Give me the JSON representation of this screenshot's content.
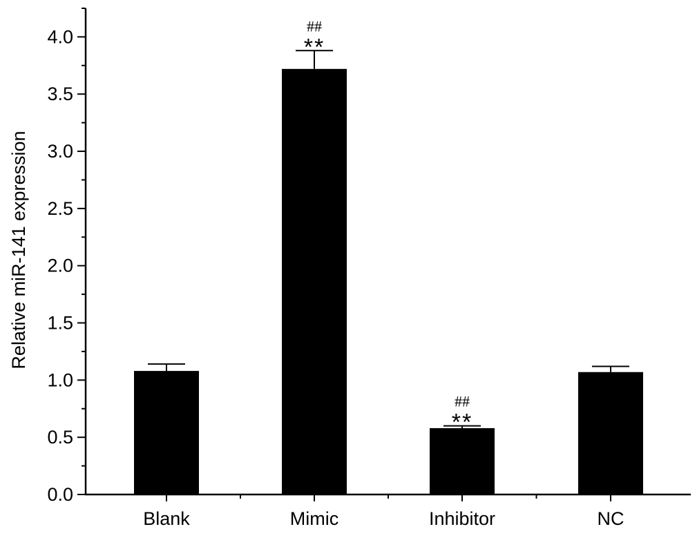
{
  "chart_data": {
    "type": "bar",
    "categories": [
      "Blank",
      "Mimic",
      "Inhibitor",
      "NC"
    ],
    "values": [
      1.08,
      3.72,
      0.58,
      1.07
    ],
    "errors": [
      0.06,
      0.16,
      0.02,
      0.05
    ],
    "annotations": [
      {
        "category": "Mimic",
        "lines": [
          "##",
          "**"
        ]
      },
      {
        "category": "Inhibitor",
        "lines": [
          "##",
          "**"
        ]
      }
    ],
    "ylabel": "Relative miR-141 expression",
    "xlabel": "",
    "ylim": [
      0,
      4.25
    ],
    "yticks": [
      "0.0",
      "0.5",
      "1.0",
      "1.5",
      "2.0",
      "2.5",
      "3.0",
      "3.5",
      "4.0"
    ],
    "bar_color": "#000000",
    "grid": false,
    "legend": "none"
  }
}
